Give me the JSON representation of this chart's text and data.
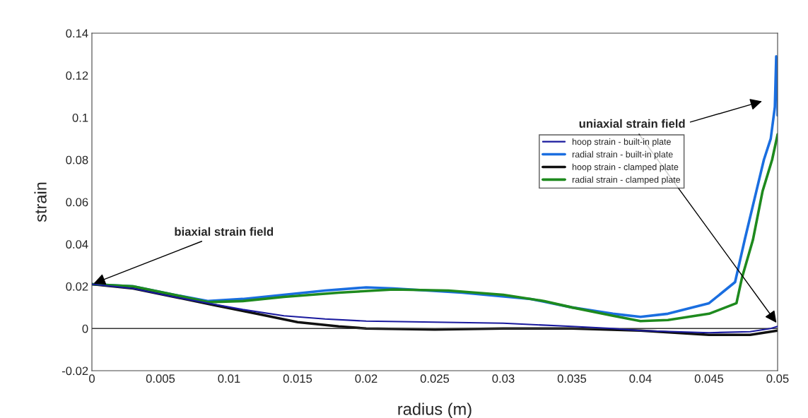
{
  "chart_data": {
    "type": "line",
    "xlabel": "radius (m)",
    "ylabel": "strain",
    "xlim": [
      0,
      0.05
    ],
    "xticks": [
      0,
      0.005,
      0.01,
      0.015,
      0.02,
      0.025,
      0.03,
      0.035,
      0.04,
      0.045,
      0.05
    ],
    "ylim": [
      -0.02,
      0.14
    ],
    "yticks": [
      -0.02,
      0,
      0.02,
      0.04,
      0.06,
      0.08,
      0.1,
      0.12,
      0.14
    ],
    "legend": "right",
    "marker": "none",
    "line_style": "solid",
    "annotations": [
      {
        "text": "biaxial strain field",
        "x": 0,
        "y": 0.021
      },
      {
        "text": "uniaxial strain field",
        "x": 0.05,
        "y": 0.002
      }
    ],
    "series": [
      {
        "name": "hoop strain - built-in plate",
        "color": "#1a1a9e",
        "x": [
          0,
          0.003,
          0.006,
          0.0085,
          0.011,
          0.014,
          0.017,
          0.02,
          0.025,
          0.03,
          0.035,
          0.038,
          0.04,
          0.045,
          0.048,
          0.0495,
          0.05
        ],
        "values": [
          0.021,
          0.019,
          0.015,
          0.012,
          0.009,
          0.006,
          0.0045,
          0.0035,
          0.003,
          0.0025,
          0.001,
          0.0,
          -0.001,
          -0.002,
          -0.0015,
          0.0,
          0.001
        ]
      },
      {
        "name": "radial strain - built-in plate",
        "color": "#1a6ee0",
        "x": [
          0,
          0.003,
          0.006,
          0.0085,
          0.011,
          0.014,
          0.017,
          0.02,
          0.022,
          0.027,
          0.032,
          0.035,
          0.038,
          0.04,
          0.042,
          0.045,
          0.0469,
          0.0476,
          0.049,
          0.0495,
          0.0498,
          0.0499,
          0.05,
          0.05
        ],
        "values": [
          0.021,
          0.02,
          0.016,
          0.013,
          0.014,
          0.016,
          0.018,
          0.0195,
          0.019,
          0.017,
          0.014,
          0.01,
          0.007,
          0.0055,
          0.007,
          0.012,
          0.022,
          0.042,
          0.08,
          0.09,
          0.105,
          0.129,
          0.12,
          0.101
        ]
      },
      {
        "name": "hoop strain - clamped plate",
        "color": "#101010",
        "x": [
          0,
          0.003,
          0.006,
          0.009,
          0.012,
          0.015,
          0.018,
          0.02,
          0.025,
          0.03,
          0.035,
          0.04,
          0.045,
          0.048,
          0.05
        ],
        "values": [
          0.021,
          0.019,
          0.015,
          0.011,
          0.007,
          0.003,
          0.001,
          0.0,
          -0.0005,
          0.0,
          0.0,
          -0.001,
          -0.003,
          -0.003,
          -0.001
        ]
      },
      {
        "name": "radial strain - clamped plate",
        "color": "#1e8a1e",
        "x": [
          0,
          0.003,
          0.006,
          0.0085,
          0.011,
          0.014,
          0.018,
          0.022,
          0.026,
          0.03,
          0.033,
          0.035,
          0.038,
          0.04,
          0.042,
          0.045,
          0.047,
          0.0474,
          0.0482,
          0.0489,
          0.0496,
          0.05
        ],
        "values": [
          0.021,
          0.02,
          0.016,
          0.0125,
          0.013,
          0.015,
          0.017,
          0.0185,
          0.018,
          0.016,
          0.013,
          0.01,
          0.006,
          0.0035,
          0.004,
          0.007,
          0.012,
          0.024,
          0.042,
          0.065,
          0.08,
          0.092
        ]
      }
    ]
  }
}
